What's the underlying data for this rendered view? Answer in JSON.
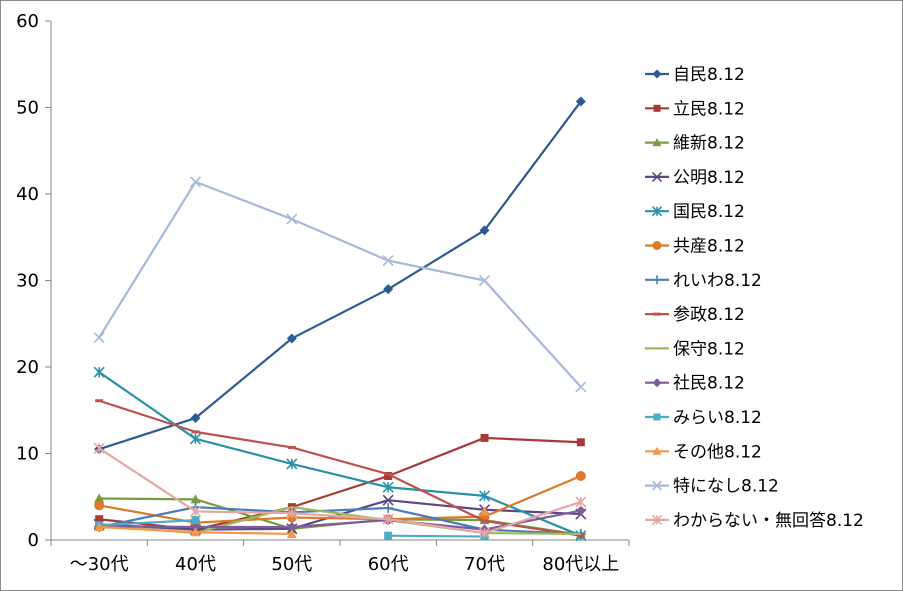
{
  "chart_data": {
    "type": "line",
    "title": "",
    "xlabel": "",
    "ylabel": "",
    "categories": [
      "～30代",
      "40代",
      "50代",
      "60代",
      "70代",
      "80代以上"
    ],
    "ylim": [
      0,
      60
    ],
    "yticks": [
      0,
      10,
      20,
      30,
      40,
      50,
      60
    ],
    "grid": false,
    "legend_position": "right",
    "series": [
      {
        "name": "自民8.12",
        "color": "#2E5A93",
        "marker": "diamond",
        "values": [
          10.5,
          14.1,
          23.3,
          29.0,
          35.8,
          50.7
        ]
      },
      {
        "name": "立民8.12",
        "color": "#A53A36",
        "marker": "square",
        "values": [
          2.4,
          1.2,
          3.8,
          7.4,
          11.8,
          11.3
        ]
      },
      {
        "name": "維新8.12",
        "color": "#799A3E",
        "marker": "triangle",
        "values": [
          4.8,
          4.7,
          1.3,
          2.4,
          2.3,
          0.6
        ]
      },
      {
        "name": "公明8.12",
        "color": "#5E4785",
        "marker": "x",
        "values": [
          1.8,
          1.2,
          1.3,
          4.6,
          3.5,
          3.0
        ]
      },
      {
        "name": "国民8.12",
        "color": "#2A91A8",
        "marker": "star",
        "values": [
          19.4,
          11.7,
          8.8,
          6.1,
          5.1,
          0.5
        ]
      },
      {
        "name": "共産8.12",
        "color": "#DA7A2A",
        "marker": "circle",
        "values": [
          4.0,
          2.0,
          2.6,
          2.4,
          2.7,
          7.4
        ]
      },
      {
        "name": "れいわ8.12",
        "color": "#4C7CBB",
        "marker": "plus",
        "values": [
          1.5,
          3.8,
          3.2,
          3.7,
          1.2,
          0.7
        ]
      },
      {
        "name": "参政8.12",
        "color": "#C0504D",
        "marker": "dash",
        "values": [
          16.1,
          12.5,
          10.7,
          7.6,
          2.2,
          0.5
        ]
      },
      {
        "name": "保守8.12",
        "color": "#9BBB59",
        "marker": "none",
        "values": [
          1.7,
          0.8,
          3.8,
          2.3,
          0.8,
          0.7
        ]
      },
      {
        "name": "社民8.12",
        "color": "#7E5C9C",
        "marker": "diamond",
        "values": [
          1.6,
          1.5,
          1.5,
          2.3,
          1.2,
          3.4
        ]
      },
      {
        "name": "みらい8.12",
        "color": "#4BACC6",
        "marker": "square",
        "values": [
          1.7,
          2.3,
          null,
          0.5,
          0.4,
          null
        ]
      },
      {
        "name": "その他8.12",
        "color": "#F79646",
        "marker": "triangle",
        "values": [
          1.5,
          0.9,
          0.7,
          null,
          3.3,
          null
        ]
      },
      {
        "name": "特になし8.12",
        "color": "#A6B9DB",
        "marker": "x",
        "values": [
          23.4,
          41.4,
          37.1,
          32.3,
          30.0,
          17.7
        ]
      },
      {
        "name": "わからない・無回答8.12",
        "color": "#E6A6A6",
        "marker": "star",
        "values": [
          10.6,
          3.3,
          3.1,
          2.4,
          0.8,
          4.4
        ]
      }
    ]
  }
}
